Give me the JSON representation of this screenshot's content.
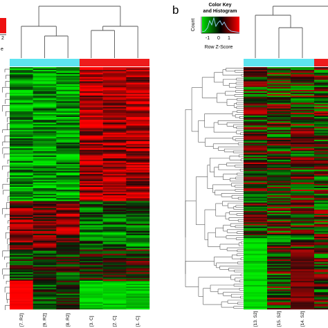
{
  "panels": {
    "b_label": "b"
  },
  "color_key": {
    "title_line1": "Color Key",
    "title_line2": "and Histogram",
    "y_axis_label": "Count",
    "x_axis_label": "Row Z-Score",
    "tick_labels": [
      "-1",
      "0",
      "1"
    ],
    "left_panel_fragment_tick": "2",
    "left_panel_fragment_text": "e",
    "colors": {
      "low": "#00dd00",
      "mid": "#000000",
      "high": "#ff0000"
    }
  },
  "chart_data": [
    {
      "type": "heatmap",
      "panel": "a",
      "title": "",
      "columns": [
        "[7. R2]",
        "[9. R2]",
        "[8. R2]",
        "[3. C]",
        "[2. C]",
        "[1. C]"
      ],
      "column_groups": [
        {
          "columns": [
            "[7. R2]",
            "[9. R2]",
            "[8. R2]"
          ],
          "color": "#5ee4f0"
        },
        {
          "columns": [
            "[3. C]",
            "[2. C]",
            "[1. C]"
          ],
          "color": "#ee1c1c"
        }
      ],
      "row_count": 170,
      "value_range": [
        -2,
        2
      ],
      "column_dendrogram": "((([7. R2],([9. R2],[8. R2])),(([3. C],[2. C]),[1. C])))",
      "row_dendrogram": true,
      "color_scale": [
        "#00dd00",
        "#000000",
        "#ff0000"
      ]
    },
    {
      "type": "heatmap",
      "panel": "b",
      "title": "",
      "columns": [
        "[13. S2]",
        "[15. S2]",
        "[14. S2]"
      ],
      "column_groups": [
        {
          "columns": [
            "[13. S2]",
            "[15. S2]",
            "[14. S2]"
          ],
          "color": "#5ee4f0"
        },
        {
          "columns": [],
          "color": "#ee1c1c"
        }
      ],
      "row_count": 170,
      "value_range": [
        -2,
        2
      ],
      "row_dendrogram": true,
      "color_scale": [
        "#00dd00",
        "#000000",
        "#ff0000"
      ]
    }
  ]
}
